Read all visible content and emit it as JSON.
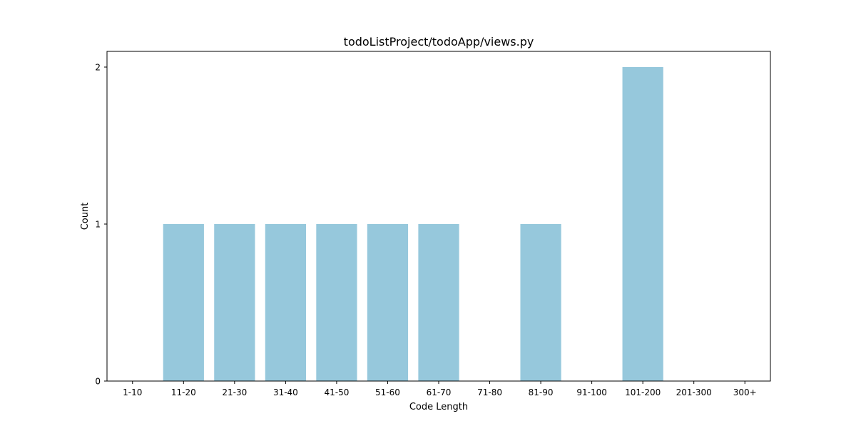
{
  "chart_data": {
    "type": "bar",
    "title": "todoListProject/todoApp/views.py",
    "xlabel": "Code Length",
    "ylabel": "Count",
    "categories": [
      "1-10",
      "11-20",
      "21-30",
      "31-40",
      "41-50",
      "51-60",
      "61-70",
      "71-80",
      "81-90",
      "91-100",
      "101-200",
      "201-300",
      "300+"
    ],
    "values": [
      0,
      1,
      1,
      1,
      1,
      1,
      1,
      0,
      1,
      0,
      2,
      0,
      0
    ],
    "ylim": [
      0,
      2.1
    ],
    "yticks": [
      0,
      1,
      2
    ],
    "bar_color": "#96c8dc",
    "grid": false,
    "legend": "none"
  }
}
